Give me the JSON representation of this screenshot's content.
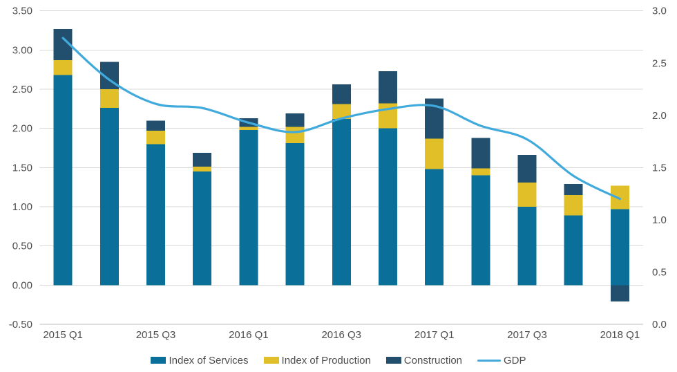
{
  "chart_data": {
    "type": "bar",
    "subtype": "stacked-column-with-line",
    "title": "",
    "xlabel": "",
    "ylabel": "",
    "categories": [
      "2015 Q1",
      "2015 Q2",
      "2015 Q3",
      "2015 Q4",
      "2016 Q1",
      "2016 Q2",
      "2016 Q3",
      "2016 Q4",
      "2017 Q1",
      "2017 Q2",
      "2017 Q3",
      "2017 Q4",
      "2018 Q1"
    ],
    "x_tick_labels": [
      "2015 Q1",
      "2015 Q3",
      "2016 Q1",
      "2016 Q3",
      "2017 Q1",
      "2017 Q3",
      "2018 Q1"
    ],
    "x_tick_indices": [
      0,
      2,
      4,
      6,
      8,
      10,
      12
    ],
    "series": [
      {
        "name": "Index of Services",
        "type": "bar",
        "color": "#0b7099",
        "values": [
          2.68,
          2.26,
          1.8,
          1.45,
          1.98,
          1.81,
          2.12,
          2.0,
          1.48,
          1.4,
          1.0,
          0.89,
          0.97
        ]
      },
      {
        "name": "Index of Production",
        "type": "bar",
        "color": "#e0bf29",
        "values": [
          0.19,
          0.24,
          0.17,
          0.06,
          0.04,
          0.21,
          0.19,
          0.32,
          0.39,
          0.09,
          0.31,
          0.26,
          0.3
        ]
      },
      {
        "name": "Construction",
        "type": "bar",
        "color": "#234f6e",
        "values": [
          0.4,
          0.35,
          0.13,
          0.18,
          0.11,
          0.17,
          0.25,
          0.41,
          0.51,
          0.39,
          0.35,
          0.14,
          -0.21
        ]
      },
      {
        "name": "GDP",
        "type": "line",
        "axis": "right",
        "color": "#41aadd",
        "values": [
          2.74,
          2.34,
          2.11,
          2.07,
          1.93,
          1.84,
          1.97,
          2.06,
          2.09,
          1.9,
          1.77,
          1.42,
          1.2
        ]
      }
    ],
    "left_axis": {
      "min": -0.5,
      "max": 3.5,
      "step": 0.5,
      "tick_labels": [
        "3.50",
        "3.00",
        "2.50",
        "2.00",
        "1.50",
        "1.00",
        "0.50",
        "0.00",
        "-0.50"
      ]
    },
    "right_axis": {
      "min": 0.0,
      "max": 3.0,
      "step": 0.5,
      "tick_labels": [
        "3.0",
        "2.5",
        "2.0",
        "1.5",
        "1.0",
        "0.5",
        "0.0"
      ]
    },
    "grid": true,
    "legend_position": "bottom"
  },
  "colors": {
    "gridline": "#d9d9d9",
    "axis_line": "#bfbfbf",
    "tick_text": "#4d4d4d",
    "background": "#ffffff"
  }
}
